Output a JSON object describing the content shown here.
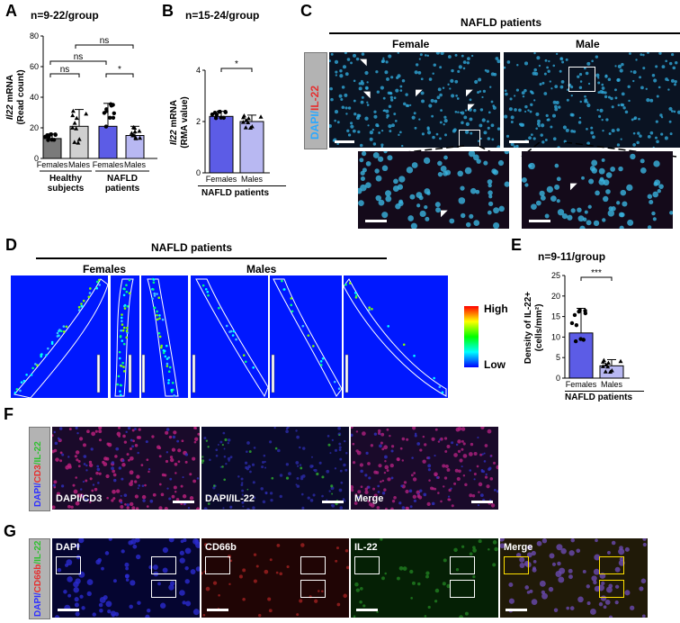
{
  "panels": {
    "A": {
      "label": "A",
      "title": "n=9-22/group",
      "ylabel_gene": "Il22",
      "ylabel_rest": " mRNA",
      "ylabel2": "(Read count)",
      "yticks": [
        "0",
        "20",
        "40",
        "60",
        "80"
      ],
      "groups": [
        "Females",
        "Males",
        "Females",
        "Males"
      ],
      "group_labels": [
        "Healthy\nsubjects",
        "NAFLD\npatients"
      ],
      "group_label_1a": "Healthy",
      "group_label_1b": "subjects",
      "group_label_2a": "NAFLD",
      "group_label_2b": "patients",
      "sig": [
        "ns",
        "ns",
        "ns",
        "*"
      ],
      "colors": [
        "#7a7a7a",
        "#d0d0d0",
        "#5c5ce6",
        "#b8b8f2"
      ]
    },
    "B": {
      "label": "B",
      "title": "n=15-24/group",
      "ylabel_gene": "Il22",
      "ylabel_rest": " mRNA",
      "ylabel2": "(RMA value)",
      "yticks": [
        "0",
        "2",
        "4"
      ],
      "groups": [
        "Females",
        "Males"
      ],
      "xgroup": "NAFLD patients",
      "sig": "*",
      "colors": [
        "#5c5ce6",
        "#b8b8f2"
      ]
    },
    "C": {
      "label": "C",
      "title": "NAFLD patients",
      "sub_female": "Female",
      "sub_male": "Male",
      "side_dapi": "DAPI/",
      "side_il22": "IL-22"
    },
    "D": {
      "label": "D",
      "title": "NAFLD patients",
      "females": "Females",
      "males": "Males",
      "scale_high": "High",
      "scale_low": "Low"
    },
    "E": {
      "label": "E",
      "title": "n=9-11/group",
      "ylabel1": "Density of IL-22+",
      "ylabel2": "(cells/mm²)",
      "yticks": [
        "0",
        "5",
        "10",
        "15",
        "20",
        "25"
      ],
      "groups": [
        "Females",
        "Males"
      ],
      "xgroup": "NAFLD patients",
      "sig": "***",
      "colors": [
        "#5c5ce6",
        "#b8b8f2"
      ]
    },
    "F": {
      "label": "F",
      "side_dapi": "DAPI/",
      "side_cd3": "CD3",
      "side_il22": "/IL-22",
      "img1": "DAPI/CD3",
      "img2": "DAPI/IL-22",
      "img3": "Merge"
    },
    "G": {
      "label": "G",
      "side_dapi": "DAPI/",
      "side_cd66b": "CD66b",
      "side_il22": "/IL-22",
      "img1": "DAPI",
      "img2": "CD66b",
      "img3": "IL-22",
      "img4": "Merge"
    }
  },
  "chart_data": [
    {
      "type": "bar",
      "title": "n=9-22/group",
      "categories": [
        "Healthy subjects Females",
        "Healthy subjects Males",
        "NAFLD patients Females",
        "NAFLD patients Males"
      ],
      "values": [
        13,
        21,
        21,
        15
      ],
      "errors": [
        3,
        11,
        15,
        6
      ],
      "ylabel": "Il22 mRNA (Read count)",
      "ylim": [
        0,
        80
      ]
    },
    {
      "type": "bar",
      "title": "n=15-24/group",
      "categories": [
        "Females",
        "Males"
      ],
      "values": [
        2.2,
        2.0
      ],
      "errors": [
        0.2,
        0.25
      ],
      "ylabel": "Il22 mRNA (RMA value)",
      "xlabel": "NAFLD patients",
      "ylim": [
        0,
        4
      ]
    },
    {
      "type": "bar",
      "title": "n=9-11/group",
      "categories": [
        "Females",
        "Males"
      ],
      "values": [
        11,
        3
      ],
      "errors": [
        6,
        1.5
      ],
      "ylabel": "Density of IL-22+ (cells/mm²)",
      "xlabel": "NAFLD patients",
      "ylim": [
        0,
        25
      ]
    }
  ]
}
